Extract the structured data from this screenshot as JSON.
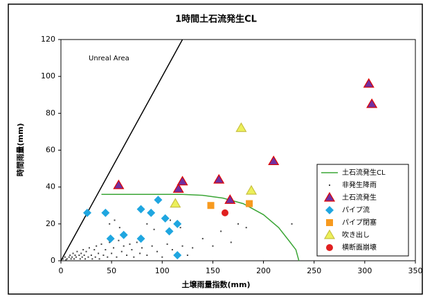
{
  "chart_data": {
    "type": "scatter",
    "title": "1時間土石流発生CL",
    "x_label": "土壌雨量指数(mm)",
    "y_label": "時間雨量(mm)",
    "annotation": "Unreal Area",
    "xlim": [
      0,
      350
    ],
    "xticks": [
      0,
      50,
      100,
      150,
      200,
      250,
      300,
      350
    ],
    "ylim": [
      0,
      120
    ],
    "yticks": [
      0,
      20,
      40,
      60,
      80,
      100,
      120
    ],
    "grid": false,
    "legend": "lower right",
    "boundary_line": {
      "color": "#000000",
      "x": [
        0,
        120
      ],
      "y": [
        0,
        120
      ]
    },
    "series": [
      {
        "name": "土石流発生CL",
        "marker": "line",
        "color": "#3aa535",
        "x": [
          40,
          120,
          140,
          160,
          180,
          200,
          215,
          225,
          232,
          234,
          235
        ],
        "y": [
          36,
          36,
          35.5,
          34,
          31,
          25,
          18,
          11,
          6,
          2,
          0
        ]
      },
      {
        "name": "非発生降雨",
        "marker": "dot",
        "color": "#444444",
        "x": [
          2,
          4,
          5,
          6,
          8,
          9,
          10,
          11,
          12,
          13,
          14,
          15,
          16,
          18,
          19,
          20,
          21,
          22,
          23,
          24,
          25,
          27,
          28,
          30,
          31,
          33,
          34,
          35,
          37,
          38,
          40,
          42,
          44,
          46,
          48,
          50,
          52,
          55,
          57,
          60,
          62,
          65,
          68,
          70,
          72,
          75,
          78,
          80,
          85,
          90,
          95,
          100,
          105,
          110,
          115,
          120,
          125,
          130,
          48,
          53,
          58,
          63,
          85,
          92,
          108,
          118,
          140,
          150,
          158,
          168,
          175,
          183,
          228,
          257
        ],
        "y": [
          1,
          2,
          0.5,
          1,
          2,
          3,
          1,
          2,
          4,
          1,
          3,
          2,
          5,
          3,
          1,
          4,
          2,
          6,
          3,
          1,
          5,
          2,
          7,
          3,
          1,
          6,
          2,
          8,
          4,
          1,
          9,
          3,
          6,
          2,
          10,
          4,
          7,
          2,
          11,
          5,
          8,
          3,
          9,
          6,
          2,
          10,
          4,
          7,
          3,
          8,
          5,
          2,
          9,
          6,
          4,
          8,
          3,
          7,
          20,
          22,
          18,
          15,
          20,
          17,
          22,
          18,
          12,
          8,
          16,
          10,
          20,
          18,
          20,
          23
        ]
      },
      {
        "name": "土石流発生",
        "marker": "triangle",
        "color": "#7030a0",
        "edgecolor": "#e00000",
        "x": [
          57,
          116,
          120,
          156,
          167,
          210,
          304,
          307
        ],
        "y": [
          41,
          39,
          43,
          44,
          33,
          54,
          96,
          85
        ]
      },
      {
        "name": "パイプ流",
        "marker": "diamond",
        "color": "#1fa6e0",
        "x": [
          26,
          44,
          49,
          62,
          79,
          79,
          89,
          96,
          103,
          107,
          115,
          115
        ],
        "y": [
          26,
          26,
          12,
          14,
          28,
          12,
          26,
          33,
          23,
          16,
          20,
          3
        ]
      },
      {
        "name": "パイプ閉塞",
        "marker": "square",
        "color": "#f79a1f",
        "x": [
          148,
          186
        ],
        "y": [
          30,
          31
        ]
      },
      {
        "name": "吹き出し",
        "marker": "triangle",
        "color": "#ecf05a",
        "edgecolor": "#c8c040",
        "x": [
          113,
          178,
          188
        ],
        "y": [
          31,
          72,
          38
        ]
      },
      {
        "name": "横断面崩壊",
        "marker": "circle",
        "color": "#e02020",
        "x": [
          162
        ],
        "y": [
          26
        ]
      }
    ]
  }
}
